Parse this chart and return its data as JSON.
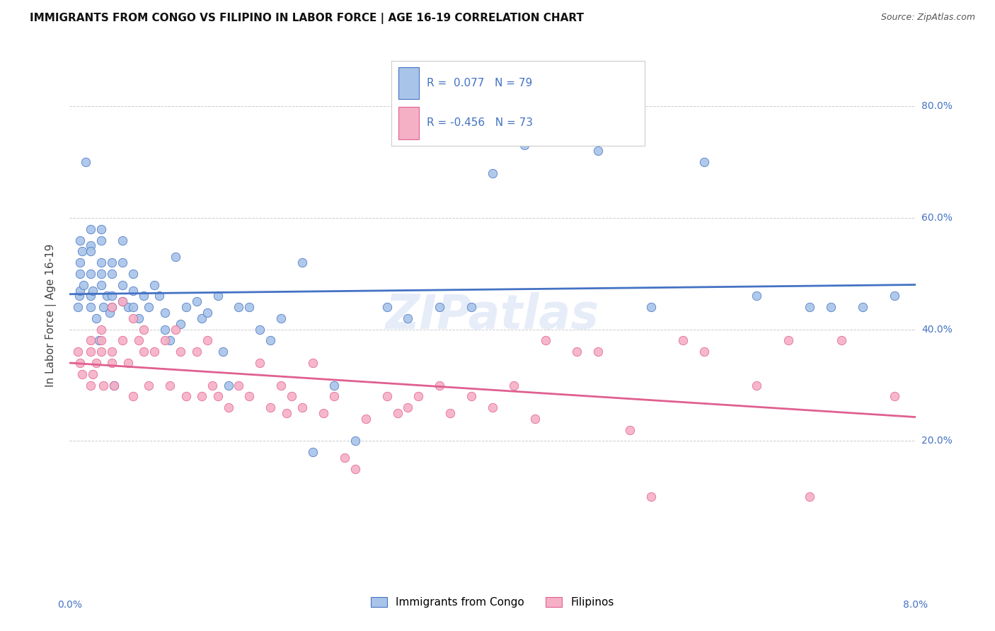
{
  "title": "IMMIGRANTS FROM CONGO VS FILIPINO IN LABOR FORCE | AGE 16-19 CORRELATION CHART",
  "source": "Source: ZipAtlas.com",
  "ylabel": "In Labor Force | Age 16-19",
  "xlim": [
    0.0,
    0.08
  ],
  "ylim": [
    -0.05,
    0.9
  ],
  "congo_R": 0.077,
  "congo_N": 79,
  "filipino_R": -0.456,
  "filipino_N": 73,
  "congo_color": "#a8c4e8",
  "filipino_color": "#f5b0c5",
  "congo_line_color": "#4472c4",
  "filipino_line_color": "#e06090",
  "background_color": "#ffffff",
  "grid_color": "#cccccc",
  "right_label_color": "#4472c4",
  "congo_x": [
    0.0008,
    0.0009,
    0.001,
    0.001,
    0.001,
    0.001,
    0.0012,
    0.0013,
    0.0015,
    0.002,
    0.002,
    0.002,
    0.002,
    0.002,
    0.002,
    0.0022,
    0.0025,
    0.0028,
    0.003,
    0.003,
    0.003,
    0.003,
    0.003,
    0.0032,
    0.0035,
    0.0038,
    0.004,
    0.004,
    0.004,
    0.004,
    0.0042,
    0.005,
    0.005,
    0.005,
    0.005,
    0.0055,
    0.006,
    0.006,
    0.006,
    0.0065,
    0.007,
    0.0075,
    0.008,
    0.0085,
    0.009,
    0.009,
    0.0095,
    0.01,
    0.0105,
    0.011,
    0.012,
    0.0125,
    0.013,
    0.014,
    0.0145,
    0.015,
    0.016,
    0.017,
    0.018,
    0.019,
    0.02,
    0.022,
    0.023,
    0.025,
    0.027,
    0.03,
    0.032,
    0.035,
    0.038,
    0.04,
    0.043,
    0.05,
    0.055,
    0.06,
    0.065,
    0.07,
    0.072,
    0.075,
    0.078
  ],
  "congo_y": [
    0.44,
    0.46,
    0.47,
    0.5,
    0.52,
    0.56,
    0.54,
    0.48,
    0.7,
    0.55,
    0.58,
    0.54,
    0.5,
    0.46,
    0.44,
    0.47,
    0.42,
    0.38,
    0.58,
    0.56,
    0.52,
    0.5,
    0.48,
    0.44,
    0.46,
    0.43,
    0.52,
    0.5,
    0.46,
    0.44,
    0.3,
    0.56,
    0.52,
    0.48,
    0.45,
    0.44,
    0.5,
    0.47,
    0.44,
    0.42,
    0.46,
    0.44,
    0.48,
    0.46,
    0.43,
    0.4,
    0.38,
    0.53,
    0.41,
    0.44,
    0.45,
    0.42,
    0.43,
    0.46,
    0.36,
    0.3,
    0.44,
    0.44,
    0.4,
    0.38,
    0.42,
    0.52,
    0.18,
    0.3,
    0.2,
    0.44,
    0.42,
    0.44,
    0.44,
    0.68,
    0.73,
    0.72,
    0.44,
    0.7,
    0.46,
    0.44,
    0.44,
    0.44,
    0.46
  ],
  "filipino_x": [
    0.0008,
    0.001,
    0.0012,
    0.002,
    0.002,
    0.002,
    0.0022,
    0.0025,
    0.003,
    0.003,
    0.003,
    0.0032,
    0.004,
    0.004,
    0.004,
    0.0042,
    0.005,
    0.005,
    0.0055,
    0.006,
    0.006,
    0.0065,
    0.007,
    0.007,
    0.0075,
    0.008,
    0.009,
    0.0095,
    0.01,
    0.0105,
    0.011,
    0.012,
    0.0125,
    0.013,
    0.0135,
    0.014,
    0.015,
    0.016,
    0.017,
    0.018,
    0.019,
    0.02,
    0.0205,
    0.021,
    0.022,
    0.023,
    0.024,
    0.025,
    0.026,
    0.027,
    0.028,
    0.03,
    0.031,
    0.032,
    0.033,
    0.035,
    0.036,
    0.038,
    0.04,
    0.042,
    0.044,
    0.045,
    0.048,
    0.05,
    0.053,
    0.055,
    0.058,
    0.06,
    0.065,
    0.068,
    0.07,
    0.073,
    0.078
  ],
  "filipino_y": [
    0.36,
    0.34,
    0.32,
    0.38,
    0.36,
    0.3,
    0.32,
    0.34,
    0.4,
    0.38,
    0.36,
    0.3,
    0.44,
    0.36,
    0.34,
    0.3,
    0.45,
    0.38,
    0.34,
    0.42,
    0.28,
    0.38,
    0.4,
    0.36,
    0.3,
    0.36,
    0.38,
    0.3,
    0.4,
    0.36,
    0.28,
    0.36,
    0.28,
    0.38,
    0.3,
    0.28,
    0.26,
    0.3,
    0.28,
    0.34,
    0.26,
    0.3,
    0.25,
    0.28,
    0.26,
    0.34,
    0.25,
    0.28,
    0.17,
    0.15,
    0.24,
    0.28,
    0.25,
    0.26,
    0.28,
    0.3,
    0.25,
    0.28,
    0.26,
    0.3,
    0.24,
    0.38,
    0.36,
    0.36,
    0.22,
    0.1,
    0.38,
    0.36,
    0.3,
    0.38,
    0.1,
    0.38,
    0.28
  ]
}
